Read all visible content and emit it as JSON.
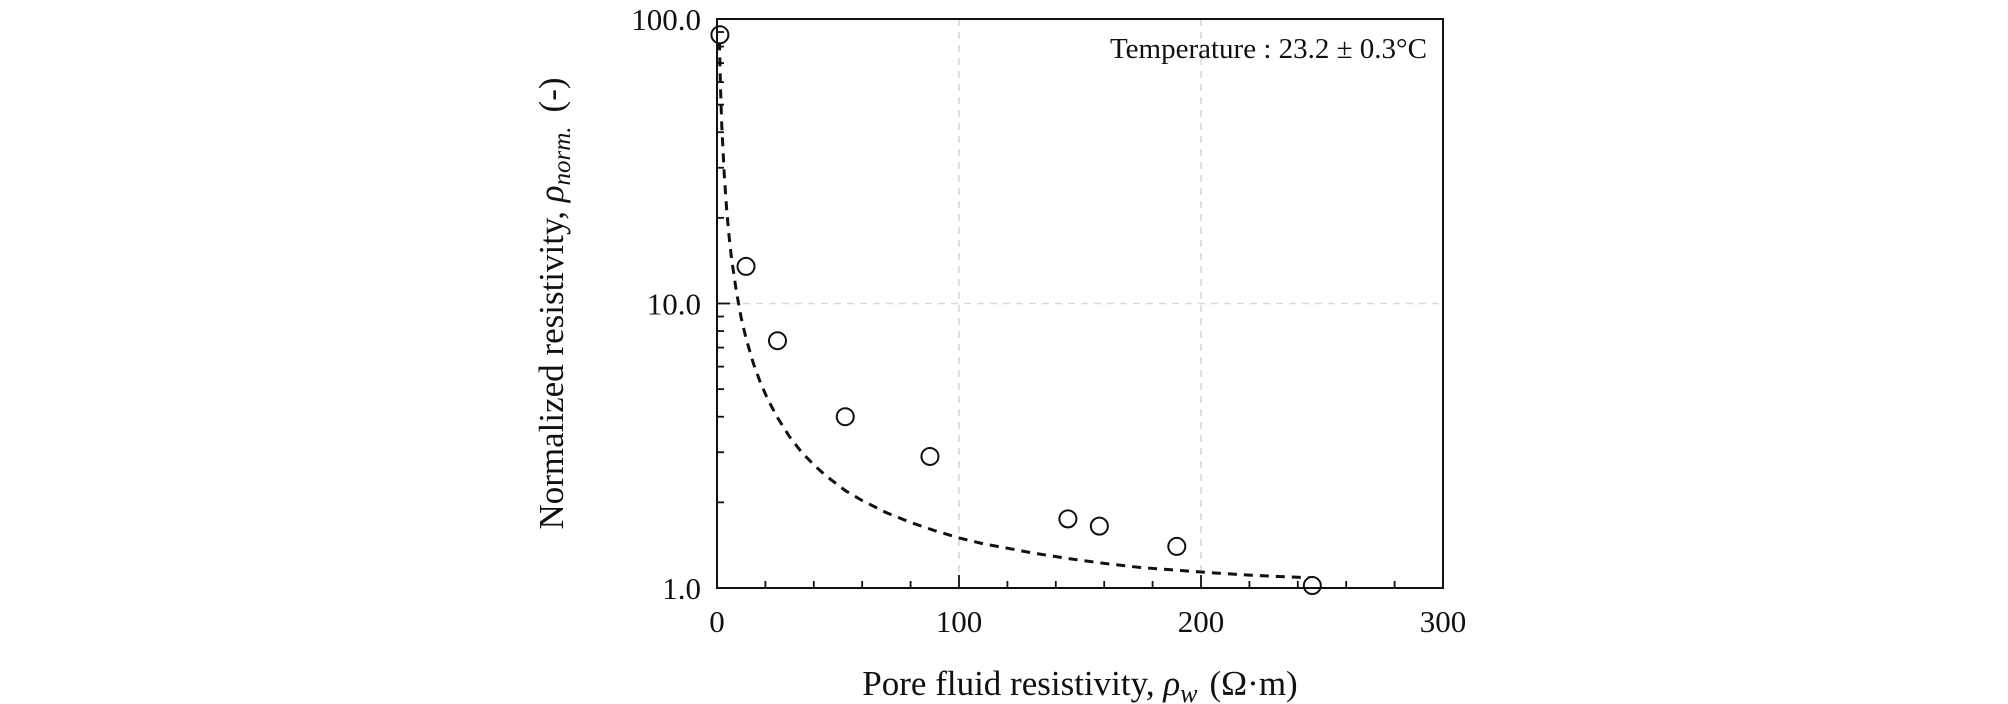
{
  "chart_data": {
    "type": "scatter",
    "title": "",
    "xlabel": {
      "prefix": "Pore fluid resistivity, ",
      "symbol": "ρ",
      "subscript": "w",
      "unit": "(Ω·m)"
    },
    "ylabel": {
      "prefix": "Normalized resistivity, ",
      "symbol": "ρ",
      "subscript": "norm.",
      "unit": "(-)"
    },
    "annotation": "Temperature : 23.2 ± 0.3°C",
    "xlim": [
      0,
      300
    ],
    "ylim": [
      1,
      100
    ],
    "y_scale": "log",
    "x_ticks": [
      0,
      100,
      200,
      300
    ],
    "x_tick_labels": [
      "0",
      "100",
      "200",
      "300"
    ],
    "x_minor_ticks": [
      20,
      40,
      60,
      80,
      120,
      140,
      160,
      180,
      220,
      240,
      260,
      280
    ],
    "y_ticks": [
      1,
      10,
      100
    ],
    "y_tick_labels": [
      "1.0",
      "10.0",
      "100.0"
    ],
    "y_minor_ticks": [
      2,
      3,
      4,
      5,
      6,
      7,
      8,
      9,
      20,
      30,
      40,
      50,
      60,
      70,
      80,
      90
    ],
    "grid": true,
    "series": [
      {
        "marker": "open-circle",
        "x": [
          1.2,
          12,
          25,
          53,
          88,
          145,
          158,
          190,
          246
        ],
        "y": [
          88,
          13.5,
          7.4,
          4.0,
          2.9,
          1.75,
          1.65,
          1.4,
          1.02
        ]
      }
    ],
    "fit_line": {
      "style": "dashed",
      "color": "#111111",
      "x": [
        1,
        1.5,
        2,
        3,
        4,
        5,
        6,
        8,
        10,
        12,
        15,
        18,
        21,
        25,
        30,
        35,
        40,
        45,
        53,
        60,
        70,
        80,
        90,
        100,
        110,
        120,
        130,
        145,
        160,
        175,
        190,
        205,
        220,
        235,
        246
      ],
      "y": [
        83.4,
        55.8,
        42.0,
        28.2,
        21.3,
        17.2,
        14.4,
        11.0,
        8.9,
        7.55,
        6.17,
        5.25,
        4.6,
        3.97,
        3.4,
        3.0,
        2.71,
        2.48,
        2.2,
        2.03,
        1.84,
        1.7,
        1.59,
        1.5,
        1.43,
        1.38,
        1.33,
        1.27,
        1.22,
        1.18,
        1.155,
        1.13,
        1.11,
        1.095,
        1.085
      ]
    }
  }
}
